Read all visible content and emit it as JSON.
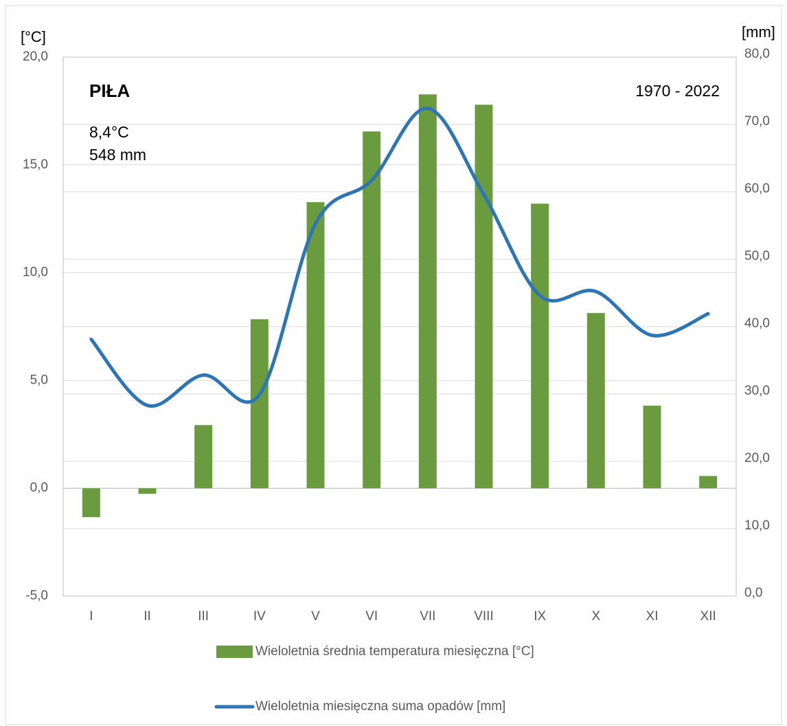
{
  "chart_data": {
    "type": "bar-line",
    "title": "PIŁA",
    "period": "1970 - 2022",
    "annual_temperature": "8,4°C",
    "annual_precipitation": "548 mm",
    "y_axis_label": "[°C]",
    "y2_axis_label": "[mm]",
    "categories": [
      "I",
      "II",
      "III",
      "IV",
      "V",
      "VI",
      "VII",
      "VIII",
      "IX",
      "X",
      "XI",
      "XII"
    ],
    "series": [
      {
        "name": "Wieloletnia średnia temperatura miesięczna [°C]",
        "color": "#6a9c3f",
        "kind": "bar",
        "values": [
          -1.34,
          -0.26,
          2.93,
          7.84,
          13.27,
          16.55,
          18.27,
          17.79,
          13.2,
          8.13,
          3.83,
          0.57
        ]
      },
      {
        "name": "Wieloletnia miesięczna suma opadów [mm]",
        "color": "#2e75b6",
        "kind": "line",
        "axis": "y2",
        "values": [
          38.1,
          28.3,
          32.8,
          29.9,
          55.3,
          61.7,
          72.4,
          59.6,
          44.6,
          45.2,
          38.7,
          41.9
        ]
      }
    ],
    "ylim": [
      -5,
      20
    ],
    "yticks": [
      {
        "value": -5,
        "label": "-5,0"
      },
      {
        "value": 0,
        "label": "0,0"
      },
      {
        "value": 5,
        "label": "5,0"
      },
      {
        "value": 10,
        "label": "10,0"
      },
      {
        "value": 15,
        "label": "15,0"
      },
      {
        "value": 20,
        "label": "20,0"
      }
    ],
    "y2lim": [
      0,
      80
    ],
    "y2ticks": [
      {
        "value": 0,
        "label": "0,0"
      },
      {
        "value": 10,
        "label": "10,0"
      },
      {
        "value": 20,
        "label": "20,0"
      },
      {
        "value": 30,
        "label": "30,0"
      },
      {
        "value": 40,
        "label": "40,0"
      },
      {
        "value": 50,
        "label": "50,0"
      },
      {
        "value": 60,
        "label": "60,0"
      },
      {
        "value": 70,
        "label": "70,0"
      },
      {
        "value": 80,
        "label": "80,0"
      }
    ],
    "grid": true
  }
}
